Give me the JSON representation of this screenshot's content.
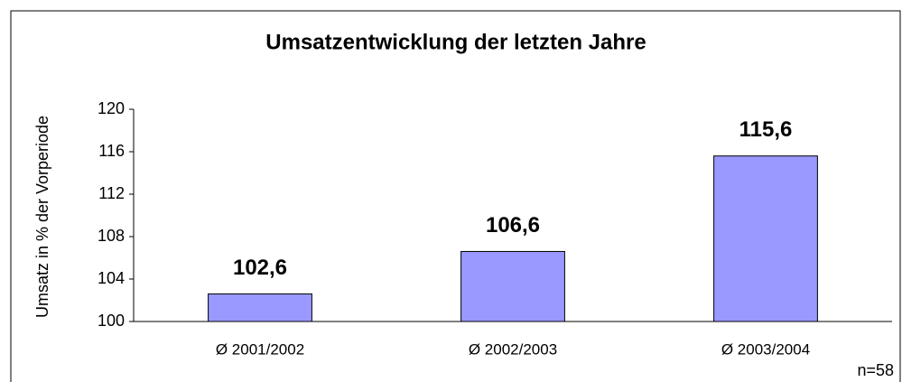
{
  "chart_data": {
    "type": "bar",
    "title": "Umsatzentwicklung der letzten Jahre",
    "y_label": "Umsatz in % der Vorperiode",
    "annotation": "n=58",
    "categories": [
      "Ø 2001/2002",
      "Ø 2002/2003",
      "Ø 2003/2004"
    ],
    "values": [
      102.6,
      106.6,
      115.6
    ],
    "value_labels": [
      "102,6",
      "106,6",
      "115,6"
    ],
    "color": "#9999ff",
    "ylim": [
      100,
      120
    ],
    "yticks": [
      100,
      104,
      108,
      112,
      116,
      120
    ],
    "grid": false
  }
}
